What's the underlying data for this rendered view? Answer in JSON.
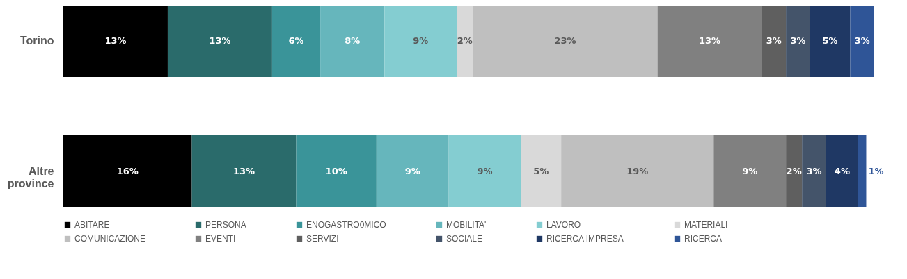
{
  "chart_data": {
    "type": "bar",
    "orientation": "horizontal",
    "stacked": true,
    "legend": "bottom",
    "categories": [
      "Torino",
      "Altre province"
    ],
    "series": [
      {
        "name": "ABITARE",
        "color": "#000000",
        "values": [
          13,
          16
        ],
        "value_labels": [
          "13%",
          "16%"
        ]
      },
      {
        "name": "PERSONA",
        "color": "#2a6b6b",
        "values": [
          13,
          13
        ],
        "value_labels": [
          "13%",
          "13%"
        ]
      },
      {
        "name": "ENOGASTRO0MICO",
        "color": "#3a9499",
        "values": [
          6,
          10
        ],
        "value_labels": [
          "6%",
          "10%"
        ]
      },
      {
        "name": "MOBILITA'",
        "color": "#66b6bc",
        "values": [
          8,
          9
        ],
        "value_labels": [
          "8%",
          "9%"
        ]
      },
      {
        "name": "LAVORO",
        "color": "#84cdd1",
        "values": [
          9,
          9
        ],
        "value_labels": [
          "9%",
          "9%"
        ]
      },
      {
        "name": "MATERIALI",
        "color": "#d9d9d9",
        "values": [
          2,
          5
        ],
        "value_labels": [
          "2%",
          "5%"
        ]
      },
      {
        "name": "COMUNICAZIONE",
        "color": "#bfbfbf",
        "values": [
          23,
          19
        ],
        "value_labels": [
          "23%",
          "19%"
        ]
      },
      {
        "name": "EVENTI",
        "color": "#808080",
        "values": [
          13,
          9
        ],
        "value_labels": [
          "13%",
          "9%"
        ]
      },
      {
        "name": "SERVIZI",
        "color": "#5f5f5f",
        "values": [
          3,
          2
        ],
        "value_labels": [
          "3%",
          "2%"
        ]
      },
      {
        "name": "SOCIALE",
        "color": "#44546a",
        "values": [
          3,
          3
        ],
        "value_labels": [
          "3%",
          "3%"
        ]
      },
      {
        "name": "RICERCA IMPRESA",
        "color": "#1f3864",
        "values": [
          5,
          4
        ],
        "value_labels": [
          "5%",
          "4%"
        ]
      },
      {
        "name": "RICERCA",
        "color": "#2f5597",
        "values": [
          3,
          1
        ],
        "value_labels": [
          "3%",
          "1%"
        ]
      }
    ]
  }
}
